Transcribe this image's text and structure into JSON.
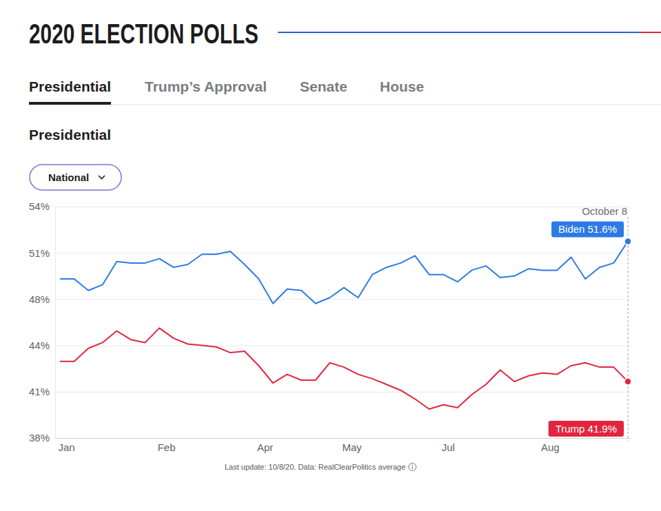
{
  "header": {
    "title": "2020 ELECTION POLLS",
    "tabs": [
      "Presidential",
      "Trump’s Approval",
      "Senate",
      "House"
    ]
  },
  "controls": {
    "dropdown": "National"
  },
  "chart_data": {
    "type": "line",
    "title": "Presidential",
    "annotation": "October 8",
    "categories": [
      "Jan",
      null,
      null,
      null,
      null,
      null,
      null,
      "Feb",
      null,
      null,
      null,
      null,
      null,
      null,
      "Apr",
      null,
      null,
      null,
      null,
      null,
      "May",
      null,
      null,
      null,
      null,
      null,
      null,
      "Jul",
      null,
      null,
      null,
      null,
      null,
      null,
      "Aug",
      null,
      null,
      null,
      null,
      null,
      null
    ],
    "series": [
      {
        "name": "Biden",
        "color": "#2d7ae5",
        "values": [
          49.0,
          49.0,
          48.2,
          48.6,
          50.2,
          50.1,
          50.1,
          50.4,
          49.8,
          50.0,
          50.7,
          50.7,
          50.9,
          50.0,
          49.0,
          47.3,
          48.3,
          48.2,
          47.3,
          47.7,
          48.4,
          47.7,
          49.3,
          49.8,
          50.1,
          50.6,
          49.3,
          49.3,
          48.8,
          49.6,
          49.9,
          49.1,
          49.2,
          49.7,
          49.6,
          49.6,
          50.5,
          49.0,
          49.8,
          50.1,
          51.6
        ],
        "value_labels": [
          null,
          null,
          null,
          null,
          null,
          null,
          null,
          null,
          null,
          null,
          null,
          null,
          null,
          null,
          null,
          null,
          null,
          null,
          null,
          null,
          null,
          null,
          null,
          null,
          null,
          null,
          null,
          null,
          null,
          null,
          null,
          null,
          null,
          null,
          null,
          null,
          null,
          null,
          null,
          null,
          "51.6%"
        ]
      },
      {
        "name": "Trump",
        "color": "#e2253e",
        "values": [
          43.3,
          43.3,
          44.2,
          44.6,
          45.4,
          44.8,
          44.6,
          45.6,
          44.9,
          44.5,
          44.4,
          44.3,
          43.9,
          44.0,
          43.0,
          41.8,
          42.4,
          42.0,
          42.0,
          43.2,
          42.9,
          42.4,
          42.1,
          41.7,
          41.3,
          40.7,
          40.0,
          40.3,
          40.1,
          41.0,
          41.7,
          42.7,
          41.9,
          42.3,
          42.5,
          42.4,
          43.0,
          43.2,
          42.9,
          42.9,
          41.9
        ],
        "value_labels": [
          null,
          null,
          null,
          null,
          null,
          null,
          null,
          null,
          null,
          null,
          null,
          null,
          null,
          null,
          null,
          null,
          null,
          null,
          null,
          null,
          null,
          null,
          null,
          null,
          null,
          null,
          null,
          null,
          null,
          null,
          null,
          null,
          null,
          null,
          null,
          null,
          null,
          null,
          null,
          null,
          "41.9%"
        ]
      }
    ],
    "ylim": [
      38,
      54
    ],
    "yticks": [
      {
        "value": 38,
        "label": "38%"
      },
      {
        "value": 41.2,
        "label": "41%"
      },
      {
        "value": 44.4,
        "label": "44%"
      },
      {
        "value": 47.6,
        "label": "48%"
      },
      {
        "value": 50.8,
        "label": "51%"
      },
      {
        "value": 54,
        "label": "54%"
      }
    ],
    "grid": true
  },
  "footer": {
    "text": "Last update: 10/8/20. Data: RealClearPolitics average"
  }
}
